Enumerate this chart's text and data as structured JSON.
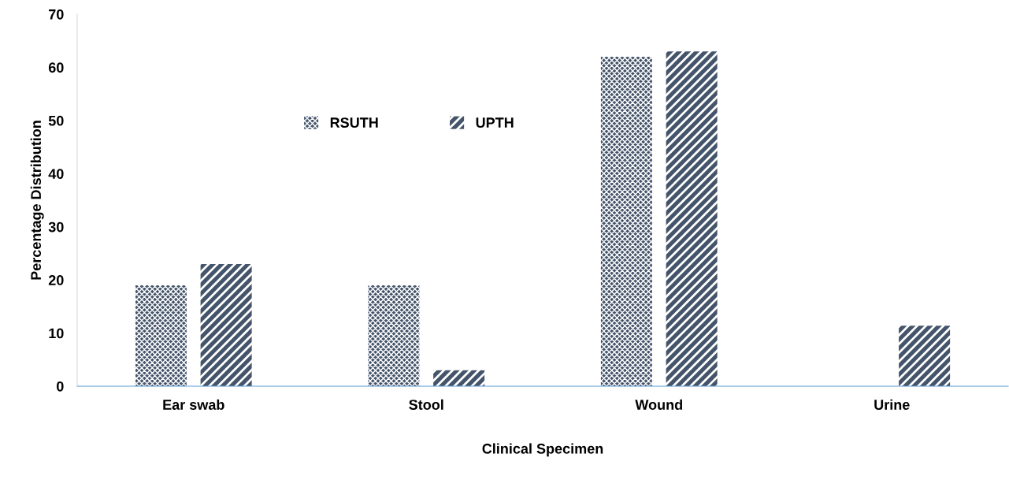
{
  "chart_data": {
    "type": "bar",
    "xlabel": "Clinical Specimen",
    "ylabel": "Percentage Distribution",
    "categories": [
      "Ear swab",
      "Stool",
      "Wound",
      "Urine"
    ],
    "series": [
      {
        "name": "RSUTH",
        "color": "#44546a",
        "values": [
          19,
          19,
          62,
          0
        ]
      },
      {
        "name": "UPTH",
        "color": "#44546a",
        "values": [
          23,
          3,
          63,
          11.4
        ]
      }
    ],
    "ylim": [
      0,
      70
    ],
    "yticks": [
      0,
      10,
      20,
      30,
      40,
      50,
      60,
      70
    ],
    "grid": false,
    "legend": "top left"
  }
}
